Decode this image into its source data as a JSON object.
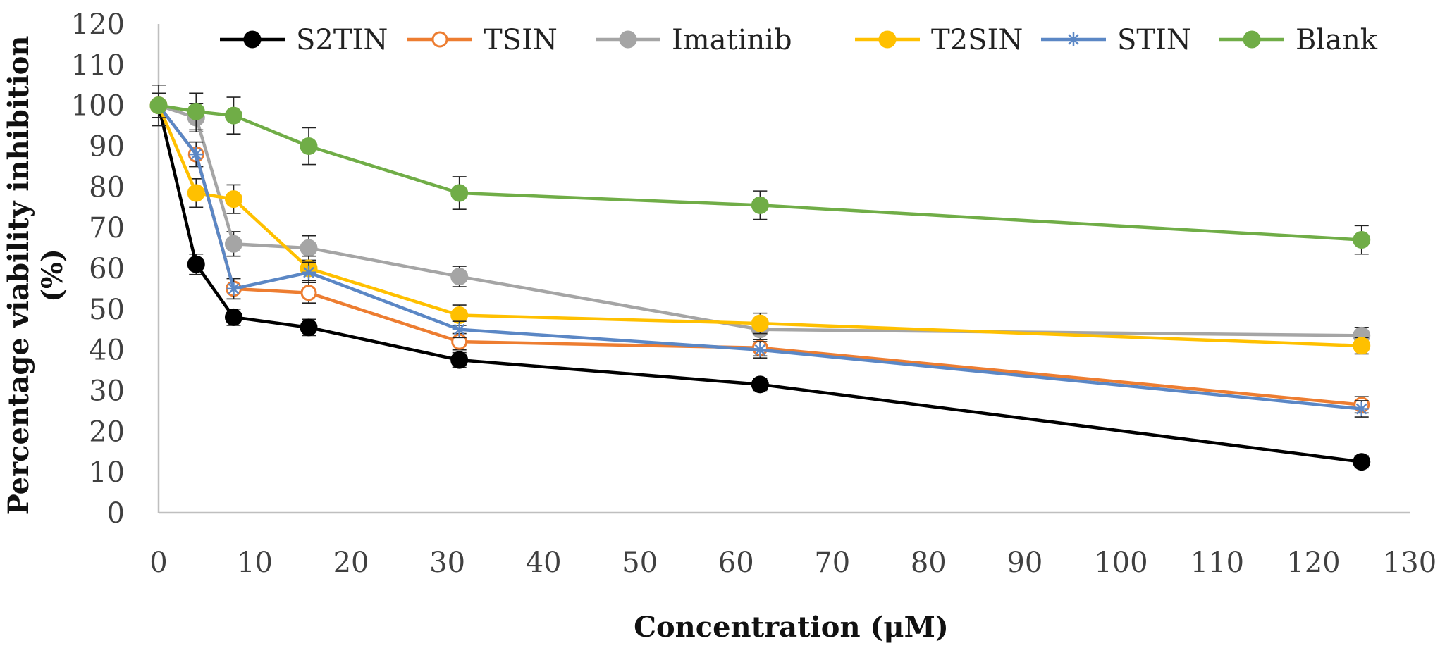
{
  "chart_data": {
    "type": "line",
    "title": "",
    "xlabel": "Concentration (μM)",
    "ylabel": "Percentage viability inhibition (%)",
    "xlim": [
      0,
      130
    ],
    "ylim": [
      0,
      120
    ],
    "x_ticks": [
      "0",
      "10",
      "20",
      "30",
      "40",
      "50",
      "60",
      "70",
      "80",
      "90",
      "100",
      "110",
      "120",
      "130"
    ],
    "y_ticks": [
      "0",
      "10",
      "20",
      "30",
      "40",
      "50",
      "60",
      "70",
      "80",
      "90",
      "100",
      "110",
      "120"
    ],
    "grid": false,
    "legend": {
      "placement": "top",
      "entries": [
        "S2TIN",
        "TSIN",
        "Imatinib",
        "T2SIN",
        "STIN",
        "Blank"
      ]
    },
    "x": [
      0,
      3.9,
      7.8,
      15.6,
      31.25,
      62.5,
      125
    ],
    "series": [
      {
        "name": "S2TIN",
        "color": "#000000",
        "marker": "filled-circle",
        "values": [
          100,
          61,
          48,
          45.5,
          37.5,
          31.5,
          12.5
        ],
        "errors": [
          3,
          2.5,
          2,
          2,
          1.8,
          1.5,
          1.5
        ]
      },
      {
        "name": "TSIN",
        "color": "#ED7D31",
        "marker": "open-circle",
        "values": [
          100,
          88,
          55,
          54,
          42,
          40.5,
          26.5
        ],
        "errors": [
          3,
          3,
          2.5,
          2.5,
          2,
          2,
          2
        ]
      },
      {
        "name": "Imatinib",
        "color": "#A5A5A5",
        "marker": "filled-circle",
        "values": [
          100,
          97,
          66,
          65,
          58,
          45,
          43.5
        ],
        "errors": [
          3,
          3.5,
          3,
          3,
          2.5,
          2.5,
          2
        ]
      },
      {
        "name": "T2SIN",
        "color": "#FFC000",
        "marker": "filled-circle",
        "values": [
          100,
          78.5,
          77,
          60,
          48.5,
          46.5,
          41
        ],
        "errors": [
          3,
          3.5,
          3.5,
          3,
          2.5,
          2.5,
          2
        ]
      },
      {
        "name": "STIN",
        "color": "#5B87C5",
        "marker": "asterisk",
        "values": [
          100,
          88,
          55,
          59,
          45,
          40,
          25.5
        ],
        "errors": [
          3,
          3,
          2.5,
          2.5,
          2,
          2,
          2
        ]
      },
      {
        "name": "Blank",
        "color": "#70AD47",
        "marker": "filled-circle",
        "values": [
          100,
          98.5,
          97.5,
          90,
          78.5,
          75.5,
          67
        ],
        "errors": [
          5,
          4.5,
          4.5,
          4.5,
          4,
          3.5,
          3.5
        ]
      }
    ]
  }
}
